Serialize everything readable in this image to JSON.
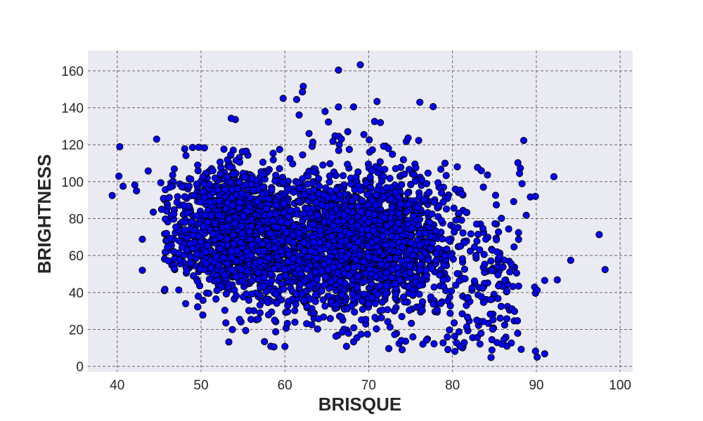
{
  "chart_data": {
    "type": "scatter",
    "title": "",
    "xlabel": "BRISQUE",
    "ylabel": "BRIGHTNESS",
    "xlim": [
      36.5,
      101.5
    ],
    "ylim": [
      -3,
      171
    ],
    "xticks": [
      40,
      50,
      60,
      70,
      80,
      90,
      100
    ],
    "yticks": [
      0,
      20,
      40,
      60,
      80,
      100,
      120,
      140,
      160
    ],
    "grid": true,
    "legend": "none",
    "colors": {
      "background": "#eaeaf2",
      "marker_fill": "#0000ff",
      "marker_edge": "#000000",
      "grid": "#666666"
    },
    "series": [
      {
        "clusters": [
          {
            "cx": 54,
            "cy": 75,
            "sx": 3.8,
            "sy": 17,
            "n": 1150
          },
          {
            "cx": 70,
            "cy": 68,
            "sx": 5.2,
            "sy": 19,
            "n": 1550
          },
          {
            "cx": 62,
            "cy": 62,
            "sx": 5.5,
            "sy": 20,
            "n": 500
          },
          {
            "cx": 82,
            "cy": 48,
            "sx": 3.5,
            "sy": 22,
            "n": 170
          }
        ],
        "points": [
          [
            39.4,
            92.5
          ],
          [
            40.3,
            118.9
          ],
          [
            40.7,
            97.5
          ],
          [
            40.2,
            103
          ],
          [
            42.1,
            98.2
          ],
          [
            42.3,
            95
          ],
          [
            43.0,
            68.8
          ],
          [
            43.0,
            52.0
          ],
          [
            43.7,
            105.8
          ],
          [
            44.3,
            83.5
          ],
          [
            44.7,
            123
          ],
          [
            45.2,
            99.4
          ],
          [
            66.4,
            160.4
          ],
          [
            69.0,
            163.3
          ],
          [
            62.2,
            151.6
          ],
          [
            62.1,
            148.6
          ],
          [
            61.4,
            144.5
          ],
          [
            59.8,
            145.1
          ],
          [
            71.0,
            143.4
          ],
          [
            68.2,
            140.5
          ],
          [
            66.4,
            140.4
          ],
          [
            76.1,
            143.0
          ],
          [
            77.7,
            140.6
          ],
          [
            64.8,
            138.0
          ],
          [
            65.2,
            132.3
          ],
          [
            61.7,
            136.1
          ],
          [
            54.1,
            133.6
          ],
          [
            53.6,
            134.3
          ],
          [
            71.4,
            132.0
          ],
          [
            70.7,
            132.6
          ],
          [
            97.5,
            71.3
          ],
          [
            98.2,
            52.4
          ],
          [
            94.1,
            57.4
          ],
          [
            92.5,
            46.8
          ],
          [
            92.1,
            102.7
          ],
          [
            89.3,
            91.7
          ],
          [
            89.9,
            92.0
          ],
          [
            88.8,
            81.8
          ],
          [
            89.8,
            42.9
          ],
          [
            89.9,
            39.6
          ],
          [
            90.1,
            41.2
          ],
          [
            91.0,
            46.5
          ],
          [
            88.5,
            122.3
          ],
          [
            87.8,
            110.2
          ],
          [
            88.1,
            107.3
          ],
          [
            88.0,
            104.4
          ],
          [
            88.3,
            98.9
          ],
          [
            87.3,
            89.2
          ],
          [
            87.0,
            55.6
          ],
          [
            87.1,
            31.1
          ],
          [
            87.4,
            29.8
          ],
          [
            86.5,
            40.7
          ],
          [
            85.8,
            32.5
          ],
          [
            85.6,
            59.2
          ],
          [
            88.2,
            9.2
          ],
          [
            89.9,
            8.2
          ],
          [
            90.1,
            5.0
          ],
          [
            91.0,
            6.8
          ],
          [
            84.6,
            4.8
          ],
          [
            85.9,
            12.0
          ],
          [
            72.4,
            9.6
          ],
          [
            73.9,
            14.0
          ],
          [
            73.1,
            17.2
          ],
          [
            74.0,
            9.0
          ],
          [
            76.9,
            14.2
          ],
          [
            77.8,
            12.2
          ],
          [
            68.2,
            13.3
          ],
          [
            68.6,
            15.5
          ],
          [
            69.1,
            17.4
          ],
          [
            67.6,
            17.9
          ],
          [
            66.1,
            16.3
          ],
          [
            63.9,
            20.2
          ],
          [
            61.2,
            23.9
          ],
          [
            60.3,
            23.2
          ],
          [
            62.6,
            23.1
          ],
          [
            55.7,
            30.2
          ],
          [
            55.7,
            35.8
          ],
          [
            54.2,
            38.2
          ],
          [
            80.9,
            10.8
          ],
          [
            81.4,
            12.8
          ],
          [
            83.4,
            17.9
          ],
          [
            84.8,
            20.1
          ],
          [
            82.9,
            25.0
          ],
          [
            81.7,
            21.4
          ],
          [
            46.4,
            69.3
          ],
          [
            46.0,
            64.6
          ],
          [
            47.0,
            75.4
          ],
          [
            45.9,
            84.1
          ],
          [
            46.2,
            91.4
          ],
          [
            45.3,
            85.0
          ],
          [
            48.3,
            51.6
          ],
          [
            47.4,
            57.6
          ],
          [
            49.9,
            52.6
          ],
          [
            49.6,
            45.9
          ],
          [
            51.9,
            41.1
          ],
          [
            51.0,
            47.2
          ]
        ]
      }
    ]
  }
}
